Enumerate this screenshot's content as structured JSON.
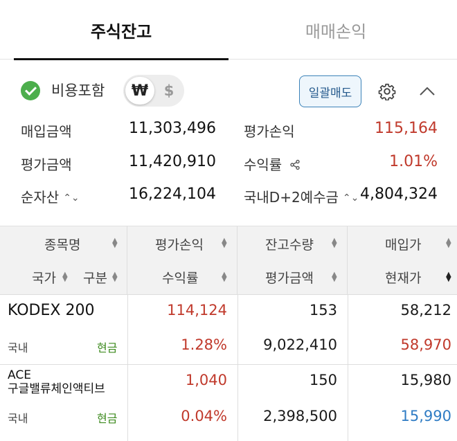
{
  "tabs": [
    {
      "label": "주식잔고",
      "active": true
    },
    {
      "label": "매매손익",
      "active": false
    }
  ],
  "options": {
    "include_fees_label": "비용포함",
    "currency_won": "₩",
    "currency_usd": "$",
    "bulk_sell_label": "일괄매도",
    "icons": [
      "check-circle-icon",
      "gear-icon",
      "chevron-up-icon"
    ]
  },
  "summary": {
    "purchase_amount_label": "매입금액",
    "purchase_amount": "11,303,496",
    "eval_pl_label": "평가손익",
    "eval_pl": "115,164",
    "eval_amount_label": "평가금액",
    "eval_amount": "11,420,910",
    "return_rate_label": "수익률",
    "return_rate": "1.01%",
    "net_assets_label": "순자산",
    "net_assets": "16,224,104",
    "deposit_label": "국내D+2예수금",
    "deposit": "4,804,324"
  },
  "table": {
    "headers": {
      "name": "종목명",
      "country": "국가",
      "type": "구분",
      "eval_pl": "평가손익",
      "return_rate": "수익률",
      "quantity": "잔고수량",
      "eval_amount": "평가금액",
      "buy_price": "매입가",
      "current_price": "현재가"
    },
    "rows": [
      {
        "name_line1": "KODEX 200",
        "name_line2": "",
        "country": "국내",
        "type": "현금",
        "eval_pl": "114,124",
        "return_rate": "1.28%",
        "quantity": "153",
        "eval_amount": "9,022,410",
        "buy_price": "58,212",
        "current_price": "58,970",
        "current_price_color": "#c0392b"
      },
      {
        "name_line1": "ACE",
        "name_line2": "구글밸류체인액티브",
        "country": "국내",
        "type": "현금",
        "eval_pl": "1,040",
        "return_rate": "0.04%",
        "quantity": "150",
        "eval_amount": "2,398,500",
        "buy_price": "15,980",
        "current_price": "15,990",
        "current_price_color": "#2f7cc4"
      }
    ]
  },
  "colors": {
    "positive": "#c0392b",
    "negative_price": "#2f7cc4",
    "cash": "#3c8a1e",
    "accent": "#3b82b8"
  }
}
